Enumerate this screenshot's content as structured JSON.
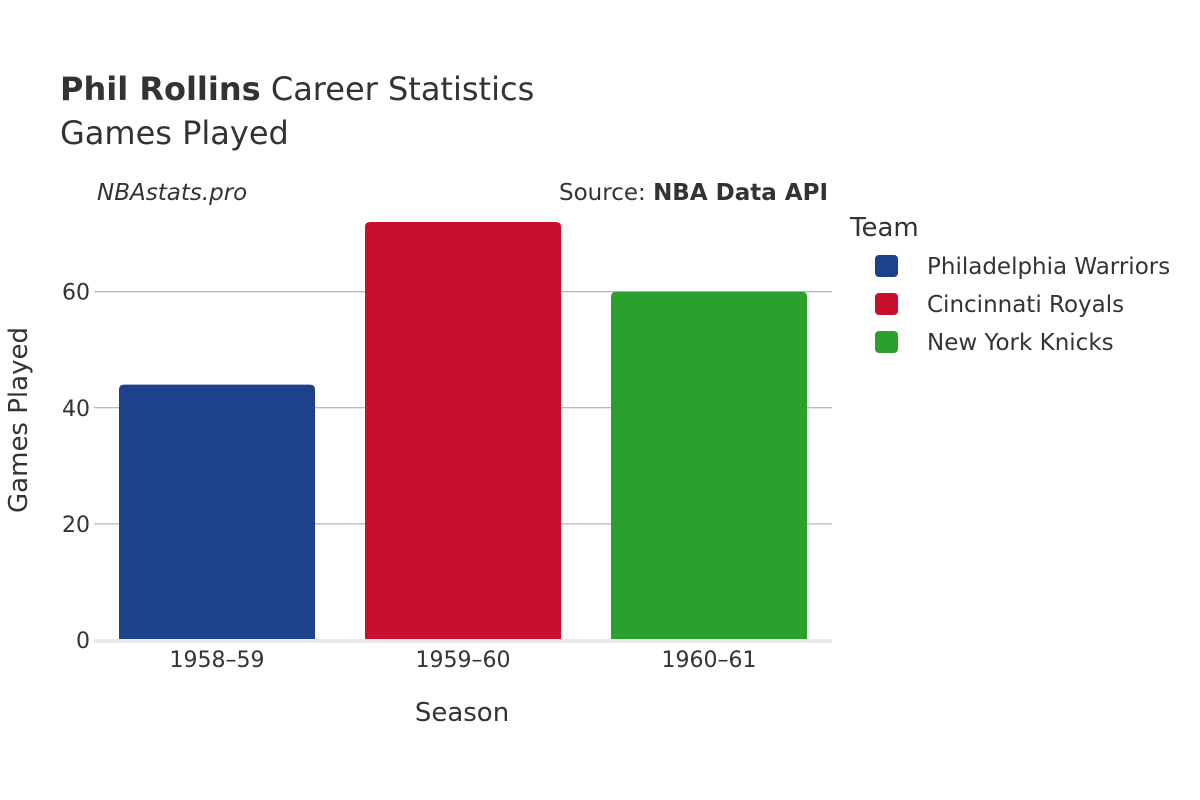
{
  "chart_data": {
    "type": "bar",
    "title_bold": "Phil Rollins",
    "title_rest": " Career Statistics",
    "subtitle": "Games Played",
    "watermark": "NBAstats.pro",
    "source_prefix": "Source: ",
    "source_name": "NBA Data API",
    "xlabel": "Season",
    "ylabel": "Games Played",
    "categories": [
      "1958–59",
      "1959–60",
      "1960–61"
    ],
    "series": [
      {
        "name": "Philadelphia Warriors",
        "color": "#1d428a",
        "values": [
          44,
          null,
          null
        ]
      },
      {
        "name": "Cincinnati Royals",
        "color": "#c8102e",
        "values": [
          null,
          72,
          null
        ]
      },
      {
        "name": "New York Knicks",
        "color": "#2ca02c",
        "values": [
          null,
          null,
          60
        ]
      }
    ],
    "ylim": [
      0,
      75.8
    ],
    "yticks": [
      0,
      20,
      40,
      60
    ],
    "grid": true,
    "legend_title": "Team",
    "legend_position": "right"
  }
}
